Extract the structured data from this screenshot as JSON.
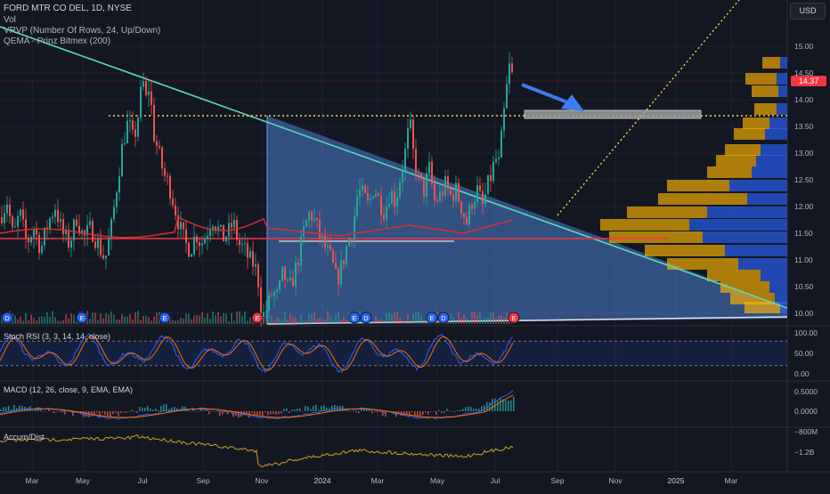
{
  "legend": {
    "symbol": "FORD MTR CO DEL, 1D, NYSE",
    "vol": "Vol",
    "vrvp": "VRVP (Number Of Rows, 24, Up/Down)",
    "qema": "QEMA - Prinz Bitmex (200)"
  },
  "currency": "USD",
  "last_price": "14.37",
  "colors": {
    "up": "#26a69a",
    "down": "#ef5350",
    "triangle": "#4a7fd0",
    "vp_up": "#2962ff",
    "vp_down": "#ffb300",
    "accent": "#f23645"
  },
  "chart_data": [
    {
      "type": "candlestick",
      "title": "FORD MTR CO DEL, 1D, NYSE",
      "x_ticks": [
        "Mar",
        "May",
        "Jul",
        "Sep",
        "Nov",
        "2024",
        "Mar",
        "May",
        "Jul",
        "Sep",
        "Nov",
        "2025",
        "Mar"
      ],
      "y_ticks": [
        "15.00",
        "14.50",
        "14.00",
        "13.50",
        "13.00",
        "12.50",
        "12.00",
        "11.50",
        "11.00",
        "10.50",
        "10.00"
      ],
      "ylim": [
        9.8,
        15.4
      ],
      "series_anchor_points": [
        [
          0,
          11.8
        ],
        [
          8,
          12.1
        ],
        [
          15,
          11.4
        ],
        [
          22,
          11.9
        ],
        [
          30,
          11.3
        ],
        [
          38,
          11.6
        ],
        [
          46,
          11.2
        ],
        [
          54,
          11.7
        ],
        [
          62,
          12.0
        ],
        [
          70,
          11.5
        ],
        [
          78,
          11.3
        ],
        [
          86,
          11.8
        ],
        [
          94,
          11.4
        ],
        [
          102,
          11.6
        ],
        [
          110,
          11.3
        ],
        [
          118,
          11.0
        ],
        [
          126,
          11.7
        ],
        [
          132,
          12.5
        ],
        [
          138,
          13.2
        ],
        [
          144,
          13.6
        ],
        [
          150,
          13.2
        ],
        [
          156,
          13.8
        ],
        [
          160,
          14.4
        ],
        [
          164,
          14.0
        ],
        [
          168,
          14.3
        ],
        [
          172,
          13.4
        ],
        [
          178,
          13.0
        ],
        [
          184,
          12.6
        ],
        [
          190,
          12.4
        ],
        [
          196,
          12.0
        ],
        [
          202,
          11.6
        ],
        [
          208,
          11.3
        ],
        [
          214,
          11.2
        ],
        [
          220,
          11.5
        ],
        [
          226,
          11.3
        ],
        [
          232,
          11.5
        ],
        [
          238,
          11.8
        ],
        [
          244,
          11.6
        ],
        [
          250,
          11.4
        ],
        [
          256,
          11.5
        ],
        [
          262,
          11.7
        ],
        [
          268,
          11.3
        ],
        [
          274,
          11.2
        ],
        [
          280,
          11.0
        ],
        [
          286,
          10.9
        ],
        [
          290,
          10.6
        ],
        [
          294,
          9.9
        ],
        [
          300,
          10.1
        ],
        [
          306,
          10.4
        ],
        [
          312,
          10.3
        ],
        [
          318,
          10.8
        ],
        [
          324,
          10.4
        ],
        [
          330,
          10.7
        ],
        [
          336,
          11.1
        ],
        [
          342,
          11.6
        ],
        [
          348,
          11.9
        ],
        [
          354,
          11.7
        ],
        [
          360,
          11.4
        ],
        [
          366,
          11.2
        ],
        [
          372,
          11.0
        ],
        [
          378,
          10.6
        ],
        [
          384,
          10.9
        ],
        [
          390,
          11.3
        ],
        [
          396,
          11.6
        ],
        [
          402,
          12.3
        ],
        [
          408,
          12.2
        ],
        [
          414,
          12.0
        ],
        [
          420,
          12.4
        ],
        [
          426,
          12.1
        ],
        [
          432,
          11.9
        ],
        [
          438,
          12.3
        ],
        [
          444,
          12.1
        ],
        [
          450,
          12.6
        ],
        [
          456,
          13.1
        ],
        [
          460,
          13.6
        ],
        [
          464,
          13.0
        ],
        [
          470,
          12.5
        ],
        [
          476,
          12.3
        ],
        [
          482,
          12.7
        ],
        [
          488,
          12.1
        ],
        [
          494,
          12.2
        ],
        [
          500,
          12.4
        ],
        [
          506,
          12.2
        ],
        [
          512,
          12.3
        ],
        [
          518,
          12.0
        ],
        [
          524,
          11.7
        ],
        [
          530,
          12.1
        ],
        [
          536,
          12.3
        ],
        [
          542,
          12.0
        ],
        [
          548,
          12.4
        ],
        [
          552,
          12.6
        ],
        [
          556,
          12.9
        ],
        [
          560,
          12.8
        ],
        [
          564,
          13.4
        ],
        [
          568,
          14.1
        ],
        [
          572,
          14.6
        ],
        [
          576,
          14.4
        ]
      ]
    },
    {
      "type": "line",
      "title": "Stoch RSI (3, 3, 14, 14, close)",
      "y_ticks": [
        "100.00",
        "50.00",
        "0.00"
      ],
      "ylim": [
        0,
        100
      ],
      "bands": [
        20,
        80
      ]
    },
    {
      "type": "bar",
      "title": "MACD (12, 26, close, 9, EMA, EMA)",
      "y_ticks": [
        "0.5000",
        "0.0000"
      ]
    },
    {
      "type": "line",
      "title": "Accum/Dist",
      "y_ticks": [
        "−800M",
        "−1.2B"
      ]
    }
  ]
}
